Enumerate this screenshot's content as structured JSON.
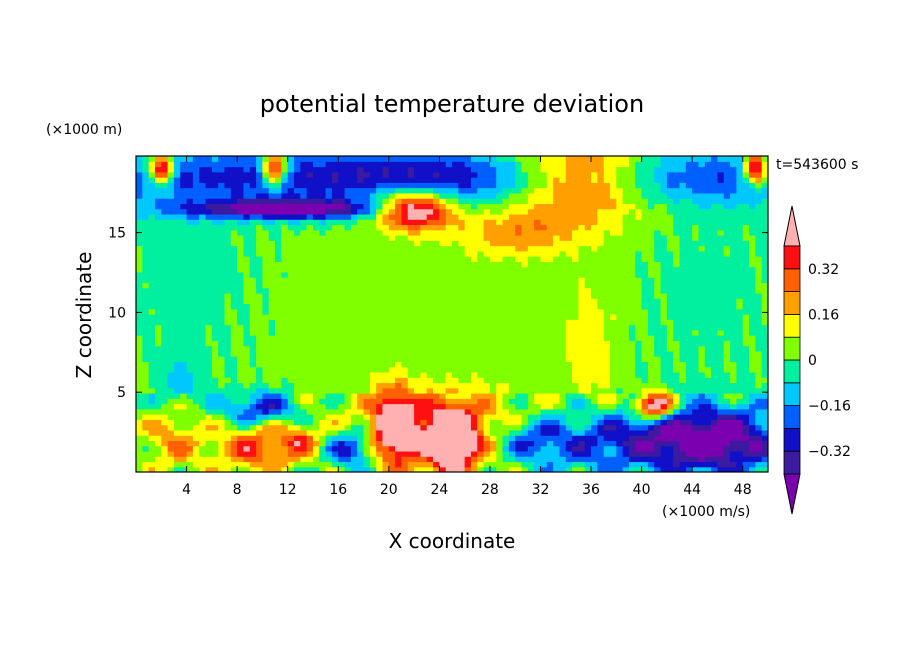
{
  "chart_data": {
    "type": "heatmap",
    "title": "potential temperature deviation",
    "xlabel": "X coordinate",
    "ylabel": "Z coordinate",
    "x_unit": "(×1000 m/s)",
    "y_unit": "(×1000 m)",
    "time_label": "t=543600 s",
    "xlim": [
      0,
      50
    ],
    "ylim": [
      0,
      19.8
    ],
    "x_ticks": [
      4,
      8,
      12,
      16,
      20,
      24,
      28,
      32,
      36,
      40,
      44,
      48
    ],
    "y_ticks": [
      5,
      10,
      15
    ],
    "colorbar": {
      "levels": [
        -0.48,
        -0.4,
        -0.32,
        -0.24,
        -0.16,
        -0.08,
        0,
        0.08,
        0.16,
        0.24,
        0.32,
        0.4
      ],
      "labels": [
        "0.32",
        "0.16",
        "0",
        "−0.16",
        "−0.32"
      ],
      "label_values": [
        0.32,
        0.16,
        0,
        -0.16,
        -0.32
      ],
      "colors": [
        "#7a00b0",
        "#3c1aa0",
        "#1010c8",
        "#0060ff",
        "#00c8ff",
        "#00f0a0",
        "#80ff00",
        "#ffff00",
        "#ffa000",
        "#ff6000",
        "#ff1010",
        "#ffb0b0"
      ]
    },
    "blobs": [
      {
        "x": 25,
        "z": 10,
        "rx": 40,
        "rz": 9,
        "v": 0.03
      },
      {
        "x": 4,
        "z": 12,
        "rx": 5,
        "rz": 6,
        "v": -0.06
      },
      {
        "x": 45,
        "z": 11,
        "rx": 6,
        "rz": 6,
        "v": -0.05
      },
      {
        "x": 36,
        "z": 8,
        "rx": 2,
        "rz": 4,
        "v": 0.12
      },
      {
        "x": 3.5,
        "z": 5.5,
        "rx": 1.5,
        "rz": 1.5,
        "v": -0.15
      },
      {
        "x": 25,
        "z": 18.5,
        "rx": 35,
        "rz": 1.8,
        "v": -0.35
      },
      {
        "x": 35,
        "z": 18.5,
        "rx": 6,
        "rz": 2.5,
        "v": 0.5
      },
      {
        "x": 30,
        "z": 15,
        "rx": 5,
        "rz": 1.5,
        "v": 0.18
      },
      {
        "x": 22,
        "z": 16.5,
        "rx": 3,
        "rz": 1.2,
        "v": 0.6
      },
      {
        "x": 2,
        "z": 19,
        "rx": 1,
        "rz": 1,
        "v": 0.6
      },
      {
        "x": 11,
        "z": 19,
        "rx": 1,
        "rz": 1,
        "v": 0.6
      },
      {
        "x": 49,
        "z": 19,
        "rx": 1,
        "rz": 1,
        "v": 0.6
      },
      {
        "x": 12,
        "z": 16.5,
        "rx": 8,
        "rz": 0.6,
        "v": -0.45
      },
      {
        "x": 25,
        "z": 2.5,
        "rx": 8,
        "rz": 2.5,
        "v": 0.3
      },
      {
        "x": 9.5,
        "z": 1.5,
        "rx": 3,
        "rz": 1.5,
        "v": 0.3
      },
      {
        "x": 20.5,
        "z": 3,
        "rx": 1.5,
        "rz": 2.2,
        "v": 0.55
      },
      {
        "x": 25,
        "z": 2,
        "rx": 2,
        "rz": 2,
        "v": 0.55
      },
      {
        "x": 13,
        "z": 2,
        "rx": 1.5,
        "rz": 1,
        "v": 0.22
      },
      {
        "x": 17,
        "z": 1.5,
        "rx": 2,
        "rz": 1.2,
        "v": -0.35
      },
      {
        "x": 38,
        "z": 2,
        "rx": 10,
        "rz": 2,
        "v": -0.3
      },
      {
        "x": 46,
        "z": 2,
        "rx": 5,
        "rz": 2,
        "v": -0.38
      },
      {
        "x": 3,
        "z": 2,
        "rx": 2.5,
        "rz": 2,
        "v": 0.2
      },
      {
        "x": 31,
        "z": 2,
        "rx": 3,
        "rz": 1.5,
        "v": -0.2
      },
      {
        "x": 41,
        "z": 4.2,
        "rx": 1.5,
        "rz": 0.8,
        "v": 0.6
      },
      {
        "x": 10,
        "z": 4,
        "rx": 3,
        "rz": 1,
        "v": -0.3
      }
    ]
  }
}
